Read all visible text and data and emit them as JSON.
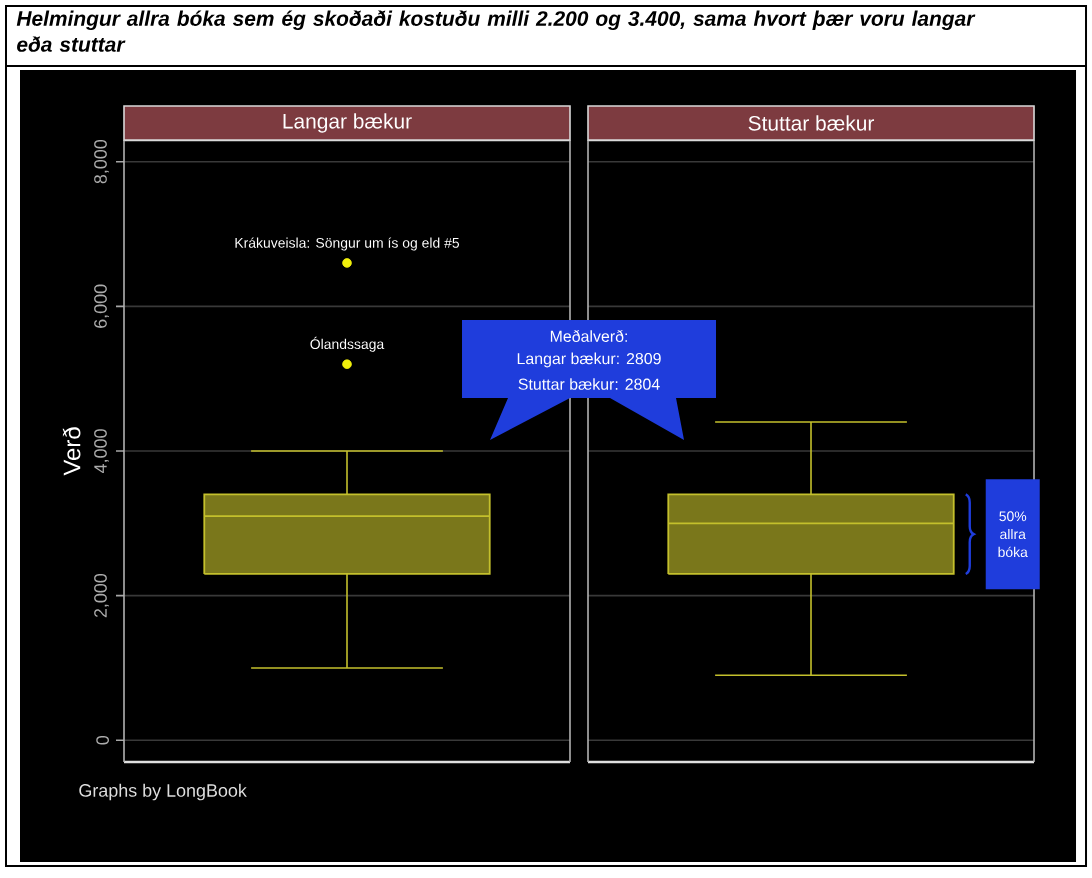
{
  "chart_data": {
    "type": "box",
    "title": "Helmingur allra bóka sem ég skoðaði kostuðu milli 2.200 og 3.400, sama hvort þær voru langar eða stuttar",
    "ylabel": "Verð",
    "categories": [
      "Langar bækur",
      "Stuttar bækur"
    ],
    "boxes": [
      {
        "low": 1000,
        "q1": 2300,
        "median": 3100,
        "q3": 3400,
        "high": 4000,
        "outliers": [
          6600,
          5200
        ]
      },
      {
        "low": 900,
        "q1": 2300,
        "median": 3000,
        "q3": 3400,
        "high": 4400
      }
    ],
    "color": "#c4c02c",
    "ylim": [
      -300,
      8300
    ],
    "yticks": [
      0,
      {
        "value": 2000,
        "label": "2,000"
      },
      {
        "value": 4000,
        "label": "4,000"
      },
      {
        "value": 6000,
        "label": "6,000"
      },
      {
        "value": 8000,
        "label": "8,000"
      }
    ],
    "grid": "y",
    "annotations": [
      "Krákuveisla: Söngur um ís og eld #5",
      "Ólandssaga",
      "Meðalverð:",
      "Langar bækur: 2809",
      "Stuttar bækur: 2804",
      "50% allra bóka",
      "Graphs by LongBook"
    ]
  }
}
